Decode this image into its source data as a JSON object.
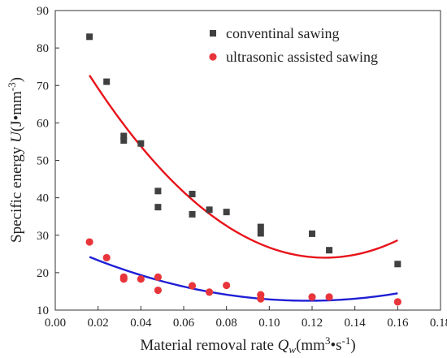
{
  "chart_data": {
    "type": "scatter",
    "title": "",
    "xlabel": {
      "prefix": "Material removal rate ",
      "symbol": "Q",
      "sub": "w",
      "unit_open": "(mm",
      "sup": "3",
      "unit_mid": "•s",
      "sup2": "-1",
      "unit_close": ")"
    },
    "ylabel": {
      "prefix": "Specific energy ",
      "symbol": "U",
      "unit_open": "(J•mm",
      "sup": "-3",
      "unit_close": ")"
    },
    "xlim": [
      0.0,
      0.18
    ],
    "ylim": [
      10,
      90
    ],
    "xticks": [
      "0.00",
      "0.02",
      "0.04",
      "0.06",
      "0.08",
      "0.10",
      "0.12",
      "0.14",
      "0.16",
      "0.18"
    ],
    "yticks": [
      "10",
      "20",
      "30",
      "40",
      "50",
      "60",
      "70",
      "80",
      "90"
    ],
    "grid": false,
    "legend_position": "top-right",
    "series": [
      {
        "name": "conventinal sawing",
        "marker": "square",
        "color": "#404040",
        "fit_color": "#e8131a",
        "points": [
          [
            0.016,
            83.0
          ],
          [
            0.024,
            71.0
          ],
          [
            0.032,
            56.5
          ],
          [
            0.032,
            55.3
          ],
          [
            0.04,
            54.5
          ],
          [
            0.048,
            41.8
          ],
          [
            0.048,
            37.5
          ],
          [
            0.064,
            41.0
          ],
          [
            0.064,
            35.6
          ],
          [
            0.072,
            36.8
          ],
          [
            0.08,
            36.2
          ],
          [
            0.096,
            32.2
          ],
          [
            0.096,
            30.5
          ],
          [
            0.12,
            30.4
          ],
          [
            0.128,
            26.0
          ],
          [
            0.16,
            22.3
          ]
        ],
        "fit": {
          "x_range": [
            0.016,
            0.16
          ],
          "x_at_min": 0.126,
          "y_at_min": 24.0,
          "y_at_start": 72.7
        }
      },
      {
        "name": "ultrasonic assisted sawing",
        "marker": "circle",
        "color": "#e8353b",
        "fit_color": "#1f1fd6",
        "points": [
          [
            0.016,
            28.2
          ],
          [
            0.024,
            24.0
          ],
          [
            0.032,
            18.8
          ],
          [
            0.032,
            18.3
          ],
          [
            0.04,
            18.3
          ],
          [
            0.048,
            18.8
          ],
          [
            0.048,
            15.3
          ],
          [
            0.064,
            16.5
          ],
          [
            0.072,
            14.8
          ],
          [
            0.08,
            16.6
          ],
          [
            0.096,
            14.1
          ],
          [
            0.096,
            13.0
          ],
          [
            0.12,
            13.5
          ],
          [
            0.128,
            13.5
          ],
          [
            0.16,
            12.2
          ]
        ],
        "fit": {
          "x_range": [
            0.016,
            0.16
          ],
          "x_at_min": 0.118,
          "y_at_min": 12.5,
          "y_at_start": 24.2
        }
      }
    ]
  }
}
